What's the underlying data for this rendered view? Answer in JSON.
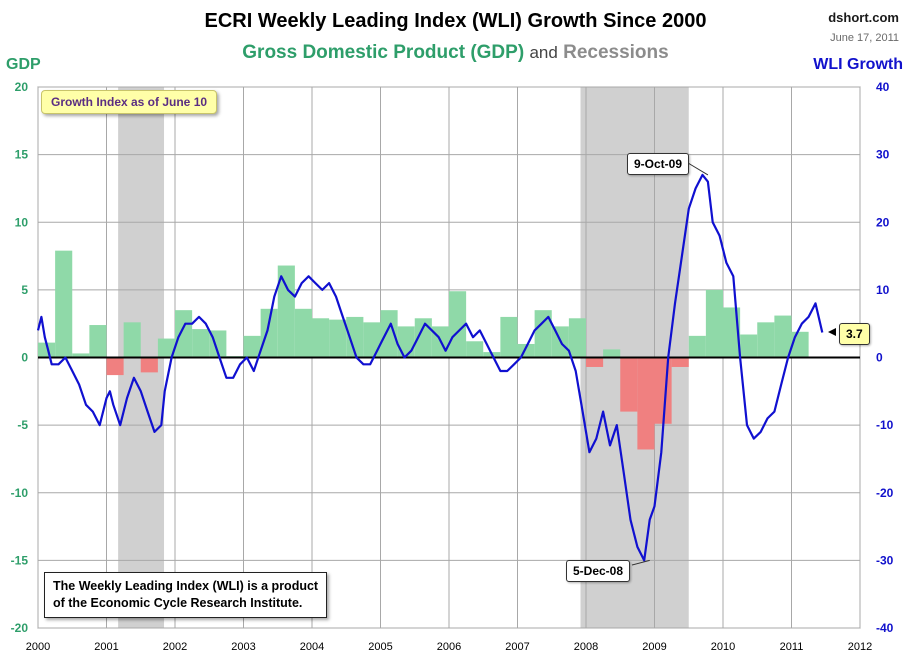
{
  "header": {
    "title": "ECRI Weekly Leading Index (WLI) Growth Since 2000",
    "subtitle_gdp": "Gross Domestic Product (GDP)",
    "subtitle_and": "and",
    "subtitle_recessions": "Recessions",
    "source": "dshort.com",
    "date": "June 17, 2011"
  },
  "annotations": {
    "growth_index": "Growth Index as of June 10",
    "note_line1": "The Weekly Leading Index (WLI) is a product",
    "note_line2": "of the Economic Cycle Research Institute.",
    "peak": "9-Oct-09",
    "trough": "5-Dec-08",
    "latest": "3.7"
  },
  "colors": {
    "wli_line": "#1010d0",
    "gdp_positive": "#8fd9a8",
    "gdp_negative": "#f08080",
    "recession": "#d0d0d0",
    "gdp_axis": "#2e9e6a",
    "wli_axis": "#1111cc"
  },
  "chart_data": {
    "type": "line",
    "ylabel": "GDP",
    "y2label": "WLI Growth",
    "xlim": [
      2000,
      2012
    ],
    "ylim": [
      -20,
      20
    ],
    "y2lim": [
      -40,
      40
    ],
    "x_ticks": [
      "2000",
      "2001",
      "2002",
      "2003",
      "2004",
      "2005",
      "2006",
      "2007",
      "2008",
      "2009",
      "2010",
      "2011",
      "2012"
    ],
    "y_ticks": [
      "20",
      "15",
      "10",
      "5",
      "0",
      "-5",
      "-10",
      "-15",
      "-20"
    ],
    "y2_ticks": [
      "40",
      "30",
      "20",
      "10",
      "0",
      "-10",
      "-20",
      "-30",
      "-40"
    ],
    "grid": true,
    "recessions": [
      [
        2001.17,
        2001.84
      ],
      [
        2007.92,
        2009.5
      ]
    ],
    "gdp_quarterly": {
      "name": "Gross Domestic Product (GDP)",
      "start": 2000.0,
      "values": [
        1.1,
        7.9,
        0.3,
        2.4,
        -1.3,
        2.6,
        -1.1,
        1.4,
        3.5,
        2.1,
        2.0,
        0.1,
        1.6,
        3.6,
        6.8,
        3.6,
        2.9,
        2.8,
        3.0,
        2.6,
        3.5,
        2.3,
        2.9,
        2.3,
        4.9,
        1.2,
        0.4,
        3.0,
        1.0,
        3.5,
        2.3,
        2.9,
        -0.7,
        0.6,
        -4.0,
        -6.8,
        -4.9,
        -0.7,
        1.6,
        5.0,
        3.7,
        1.7,
        2.6,
        3.1,
        1.9
      ]
    },
    "series": [
      {
        "name": "WLI Growth",
        "x": [
          2000.0,
          2000.05,
          2000.1,
          2000.15,
          2000.2,
          2000.3,
          2000.4,
          2000.5,
          2000.6,
          2000.7,
          2000.8,
          2000.9,
          2001.0,
          2001.05,
          2001.1,
          2001.2,
          2001.3,
          2001.4,
          2001.5,
          2001.6,
          2001.7,
          2001.8,
          2001.85,
          2001.95,
          2002.05,
          2002.15,
          2002.25,
          2002.35,
          2002.45,
          2002.55,
          2002.65,
          2002.75,
          2002.85,
          2002.95,
          2003.05,
          2003.15,
          2003.25,
          2003.35,
          2003.45,
          2003.55,
          2003.65,
          2003.75,
          2003.85,
          2003.95,
          2004.05,
          2004.15,
          2004.25,
          2004.35,
          2004.45,
          2004.55,
          2004.65,
          2004.75,
          2004.85,
          2004.95,
          2005.05,
          2005.15,
          2005.25,
          2005.35,
          2005.45,
          2005.55,
          2005.65,
          2005.75,
          2005.85,
          2005.95,
          2006.05,
          2006.15,
          2006.25,
          2006.35,
          2006.45,
          2006.55,
          2006.65,
          2006.75,
          2006.85,
          2006.95,
          2007.05,
          2007.15,
          2007.25,
          2007.35,
          2007.45,
          2007.55,
          2007.65,
          2007.75,
          2007.85,
          2007.95,
          2008.05,
          2008.15,
          2008.25,
          2008.35,
          2008.45,
          2008.55,
          2008.65,
          2008.75,
          2008.85,
          2008.93,
          2009.0,
          2009.1,
          2009.2,
          2009.3,
          2009.4,
          2009.5,
          2009.6,
          2009.7,
          2009.78,
          2009.85,
          2009.95,
          2010.05,
          2010.15,
          2010.25,
          2010.35,
          2010.45,
          2010.55,
          2010.65,
          2010.75,
          2010.85,
          2010.95,
          2011.05,
          2011.15,
          2011.25,
          2011.35,
          2011.45
        ],
        "y": [
          4,
          6,
          3,
          1,
          -1,
          -1,
          0,
          -2,
          -4,
          -7,
          -8,
          -10,
          -6,
          -5,
          -7,
          -10,
          -6,
          -3,
          -5,
          -8,
          -11,
          -10,
          -5,
          0,
          3,
          5,
          5,
          6,
          5,
          3,
          0,
          -3,
          -3,
          -1,
          0,
          -2,
          1,
          4,
          9,
          12,
          10,
          9,
          11,
          12,
          11,
          10,
          11,
          9,
          6,
          3,
          0,
          -1,
          -1,
          1,
          3,
          5,
          2,
          0,
          1,
          3,
          5,
          4,
          3,
          1,
          3,
          4,
          5,
          3,
          4,
          2,
          0,
          -2,
          -2,
          -1,
          0,
          2,
          4,
          5,
          6,
          4,
          2,
          1,
          -2,
          -8,
          -14,
          -12,
          -8,
          -13,
          -10,
          -17,
          -24,
          -28,
          -30,
          -24,
          -22,
          -14,
          0,
          8,
          15,
          22,
          25,
          27,
          26,
          20,
          18,
          14,
          12,
          0,
          -10,
          -12,
          -11,
          -9,
          -8,
          -4,
          0,
          3,
          5,
          6,
          8,
          3.7
        ]
      }
    ]
  }
}
